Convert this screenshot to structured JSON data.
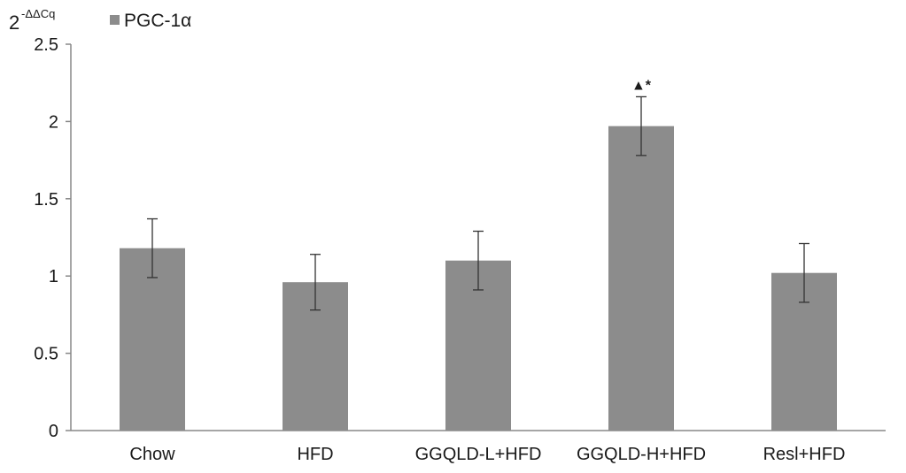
{
  "chart_data": {
    "type": "bar",
    "title": "",
    "xlabel": "",
    "ylabel": {
      "base": "2",
      "superscript": "-ΔΔCq"
    },
    "categories": [
      "Chow",
      "HFD",
      "GGQLD-L+HFD",
      "GGQLD-H+HFD",
      "Resl+HFD"
    ],
    "series": [
      {
        "name": "PGC-1α",
        "values": [
          1.18,
          0.96,
          1.1,
          1.97,
          1.02
        ],
        "errors": [
          0.19,
          0.18,
          0.19,
          0.19,
          0.19
        ],
        "color": "#8c8c8c"
      }
    ],
    "ylim": [
      0,
      2.5
    ],
    "yticks": [
      "0",
      "0.5",
      "1",
      "1.5",
      "2",
      "2.5"
    ],
    "grid": false,
    "legend": {
      "placement": "top-left",
      "entries": [
        "PGC-1α"
      ]
    },
    "annotations": [
      {
        "category": "GGQLD-H+HFD",
        "text": "▲*"
      }
    ]
  }
}
